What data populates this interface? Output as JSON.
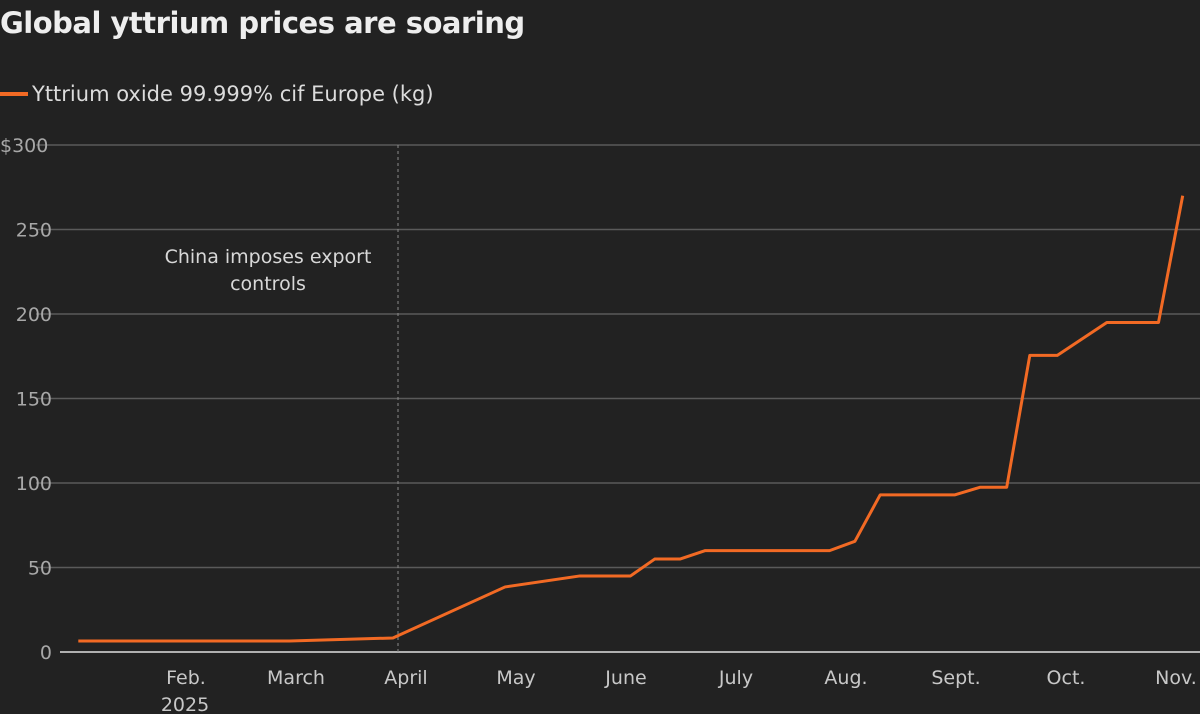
{
  "chart_data": {
    "type": "line",
    "title": "Global yttrium prices are soaring",
    "xlabel": "",
    "ylabel": "",
    "x_unit": "months since Jan 1, 2025",
    "ylim": [
      0,
      300
    ],
    "yticks": [
      0,
      50,
      100,
      150,
      200,
      250,
      300
    ],
    "ytick_labels": [
      "0",
      "50",
      "100",
      "150",
      "200",
      "250",
      "$300"
    ],
    "xticks": [
      1,
      2,
      3,
      4,
      5,
      6,
      7,
      8,
      9,
      10
    ],
    "xtick_labels": [
      "Feb.",
      "March",
      "April",
      "May",
      "June",
      "July",
      "Aug.",
      "Sept.",
      "Oct.",
      "Nov."
    ],
    "xtick_year_label": "2025",
    "grid": true,
    "legend_position": "top-left",
    "series": [
      {
        "name": "Yttrium oxide 99.999% cif Europe (kg)",
        "color": "#f26a24",
        "x": [
          0.03,
          1.95,
          2.89,
          3.91,
          4.59,
          5.05,
          5.27,
          5.5,
          5.73,
          6.86,
          7.09,
          7.32,
          8.0,
          8.23,
          8.47,
          8.68,
          8.93,
          9.38,
          9.85,
          10.07
        ],
        "y": [
          6.5,
          6.5,
          8.3,
          38.5,
          45,
          45,
          55,
          55,
          60,
          60,
          65.5,
          93,
          93,
          97.5,
          97.5,
          175.5,
          175.5,
          195,
          195,
          270
        ]
      }
    ],
    "annotations": [
      {
        "x": 3,
        "text_lines": [
          "China imposes export",
          "controls"
        ],
        "style": "dashed-vertical-line"
      }
    ]
  }
}
